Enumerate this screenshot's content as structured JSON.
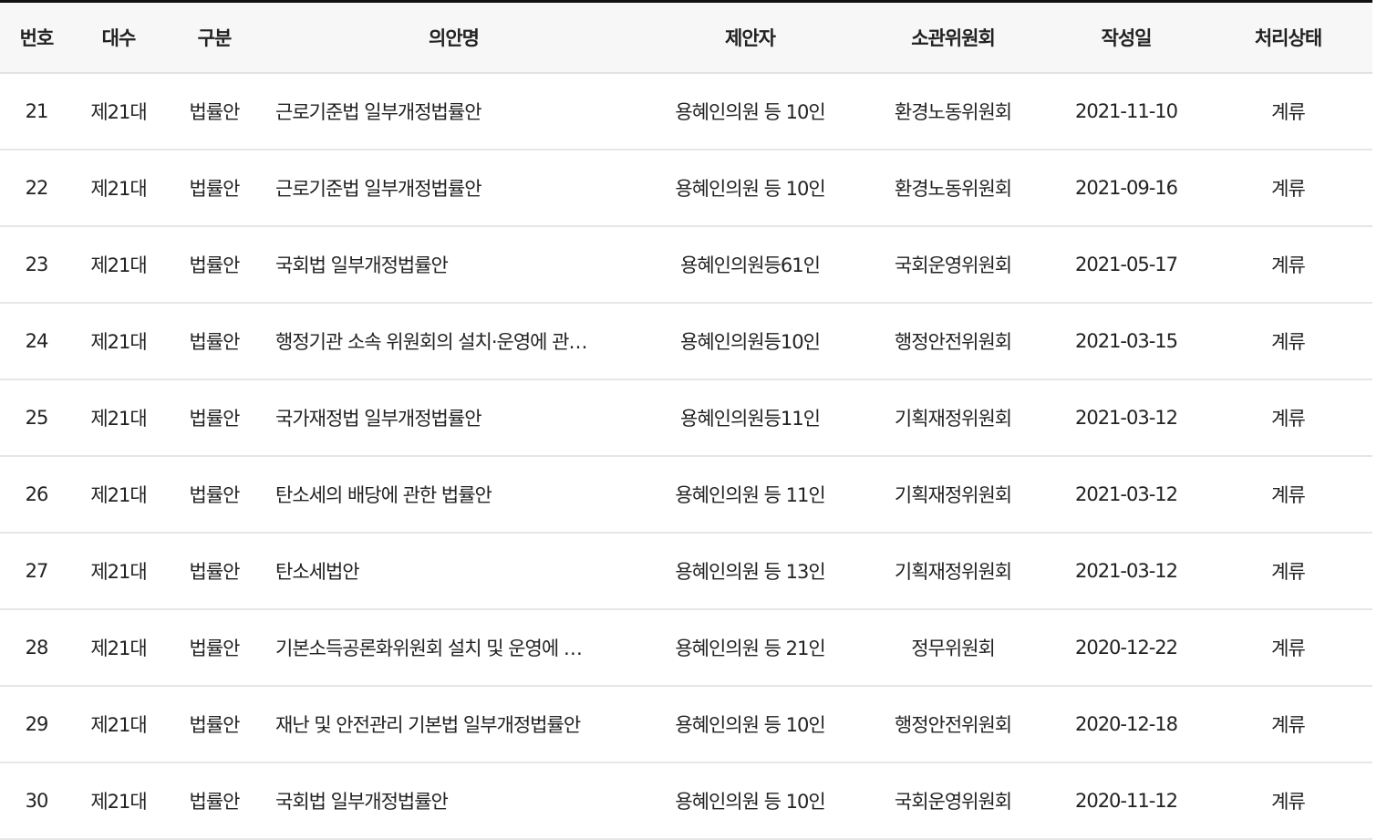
{
  "headers": [
    "번호",
    "대수",
    "구분",
    "의안명",
    "제안자",
    "소관위원회",
    "작성일",
    "처리상태"
  ],
  "rows": [
    [
      "21",
      "제21대",
      "법률안",
      "근로기준법 일부개정법률안",
      "용혜인의원 등 10인",
      "환경노동위원회",
      "2021-11-10",
      "계류"
    ],
    [
      "22",
      "제21대",
      "법률안",
      "근로기준법 일부개정법률안",
      "용혜인의원 등 10인",
      "환경노동위원회",
      "2021-09-16",
      "계류"
    ],
    [
      "23",
      "제21대",
      "법률안",
      "국회법 일부개정법률안",
      "용혜인의원등61인",
      "국회운영위원회",
      "2021-05-17",
      "계류"
    ],
    [
      "24",
      "제21대",
      "법률안",
      "행정기관 소속 위원회의 설치·운영에 관…",
      "용혜인의원등10인",
      "행정안전위원회",
      "2021-03-15",
      "계류"
    ],
    [
      "25",
      "제21대",
      "법률안",
      "국가재정법 일부개정법률안",
      "용혜인의원등11인",
      "기획재정위원회",
      "2021-03-12",
      "계류"
    ],
    [
      "26",
      "제21대",
      "법률안",
      "탄소세의 배당에 관한 법률안",
      "용혜인의원 등 11인",
      "기획재정위원회",
      "2021-03-12",
      "계류"
    ],
    [
      "27",
      "제21대",
      "법률안",
      "탄소세법안",
      "용혜인의원 등 13인",
      "기획재정위원회",
      "2021-03-12",
      "계류"
    ],
    [
      "28",
      "제21대",
      "법률안",
      "기본소득공론화위원회 설치 및 운영에 …",
      "용혜인의원 등 21인",
      "정무위원회",
      "2020-12-22",
      "계류"
    ],
    [
      "29",
      "제21대",
      "법률안",
      "재난 및 안전관리 기본법 일부개정법률안",
      "용혜인의원 등 10인",
      "행정안전위원회",
      "2020-12-18",
      "계류"
    ],
    [
      "30",
      "제21대",
      "법률안",
      "국회법 일부개정법률안",
      "용혜인의원 등 10인",
      "국회운영위원회",
      "2020-11-12",
      "계류"
    ]
  ]
}
